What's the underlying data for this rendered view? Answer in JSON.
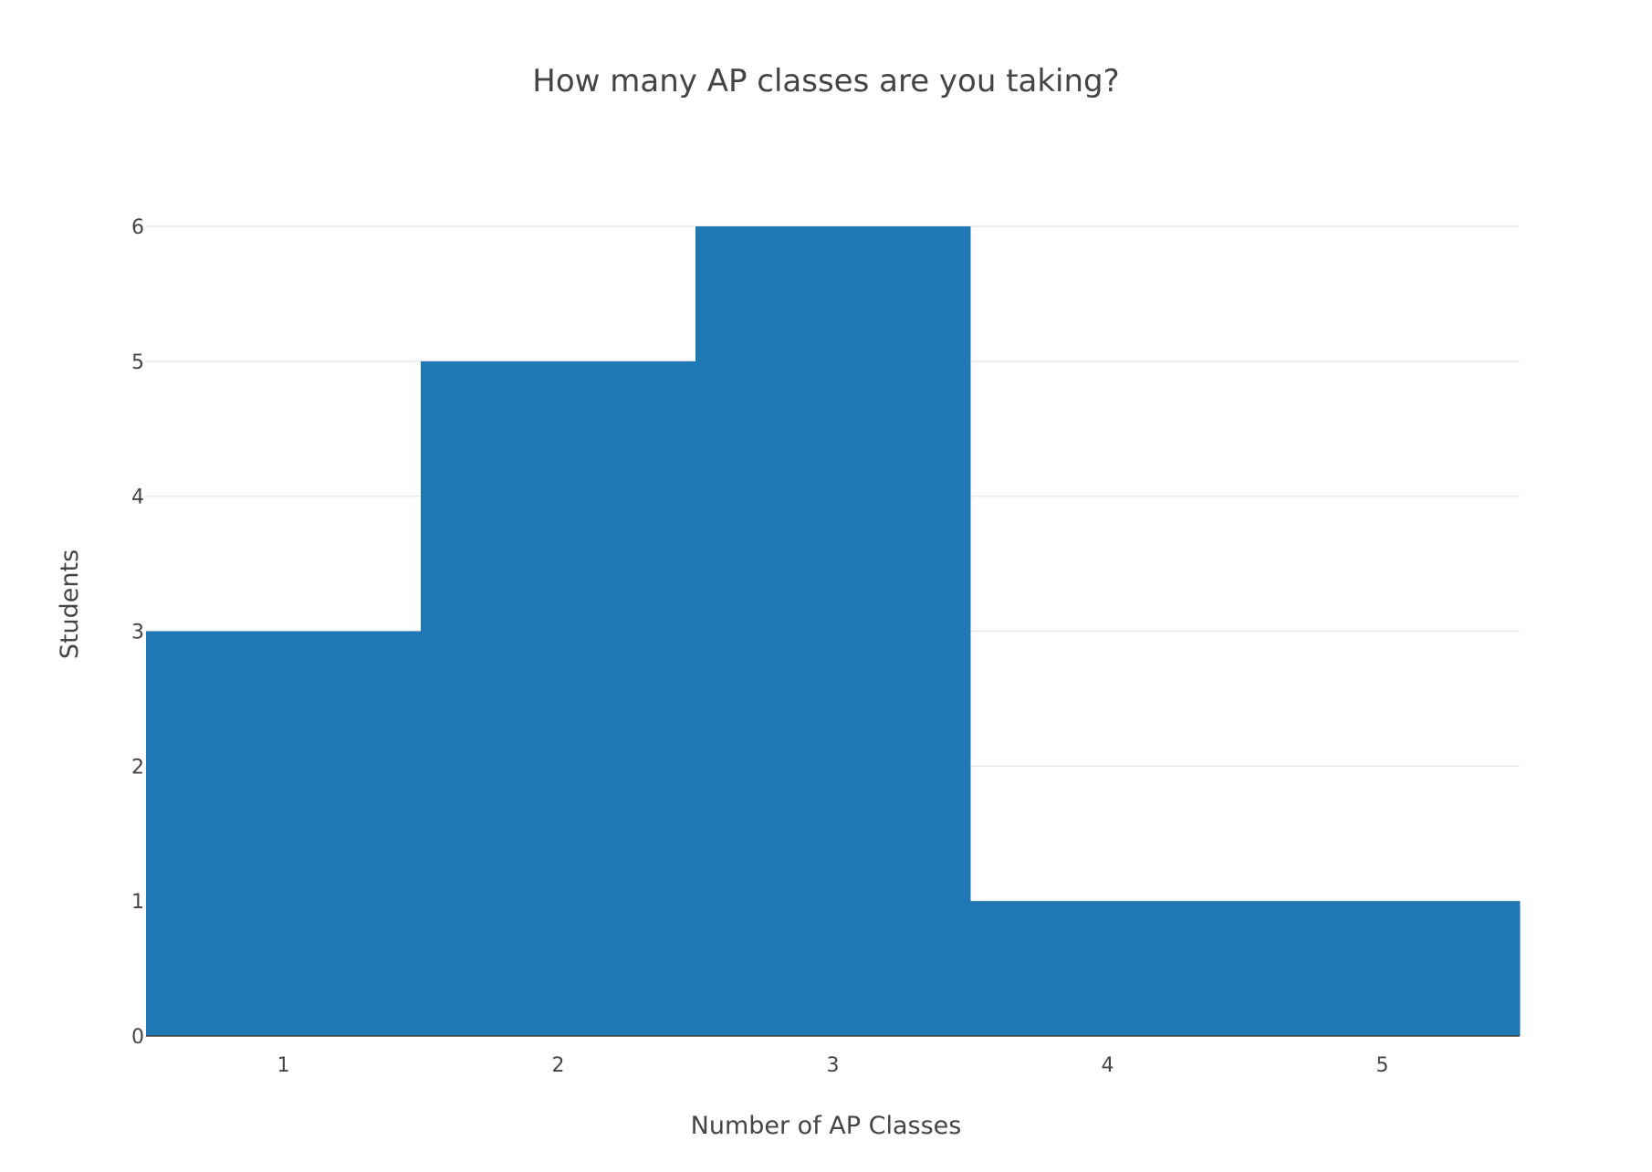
{
  "chart_data": {
    "type": "bar",
    "title": "How many AP classes are you taking?",
    "xlabel": "Number of AP Classes",
    "ylabel": "Students",
    "categories": [
      "1",
      "2",
      "3",
      "4",
      "5"
    ],
    "values": [
      3,
      5,
      6,
      1,
      1
    ],
    "x_ticks": [
      "1",
      "2",
      "3",
      "4",
      "5"
    ],
    "y_ticks": [
      0,
      1,
      2,
      3,
      4,
      5,
      6
    ],
    "ylim": [
      0,
      6
    ],
    "bar_color": "#1f77b4",
    "grid": true,
    "legend": "none"
  }
}
